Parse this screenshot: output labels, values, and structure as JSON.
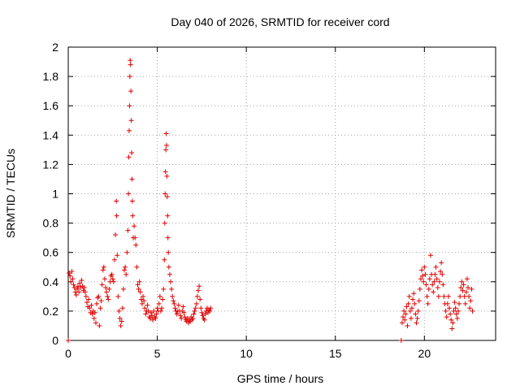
{
  "chart_data": {
    "type": "scatter",
    "title": "Day 040 of 2026, SRMTID for receiver cord",
    "xlabel": "GPS time / hours",
    "ylabel": "SRMTID / TECUs",
    "xlim": [
      0,
      24
    ],
    "ylim": [
      0,
      2
    ],
    "xticks": [
      0,
      5,
      10,
      15,
      20
    ],
    "xtick_labels": [
      "0",
      "5",
      "10",
      "15",
      "20"
    ],
    "yticks": [
      0,
      0.2,
      0.4,
      0.6,
      0.8,
      1,
      1.2,
      1.4,
      1.6,
      1.8,
      2
    ],
    "ytick_labels": [
      "0",
      "0.2",
      "0.4",
      "0.6",
      "0.8",
      "1",
      "1.2",
      "1.4",
      "1.6",
      "1.8",
      "2"
    ],
    "grid": true,
    "marker": "+",
    "marker_color": "#e00000",
    "series": [
      {
        "name": "SRMTID",
        "points": [
          [
            0.0,
            0.0
          ],
          [
            0.05,
            0.46
          ],
          [
            0.1,
            0.44
          ],
          [
            0.15,
            0.4
          ],
          [
            0.2,
            0.47
          ],
          [
            0.25,
            0.42
          ],
          [
            0.3,
            0.38
          ],
          [
            0.35,
            0.36
          ],
          [
            0.4,
            0.33
          ],
          [
            0.45,
            0.31
          ],
          [
            0.5,
            0.35
          ],
          [
            0.55,
            0.37
          ],
          [
            0.6,
            0.33
          ],
          [
            0.65,
            0.39
          ],
          [
            0.7,
            0.36
          ],
          [
            0.75,
            0.41
          ],
          [
            0.8,
            0.37
          ],
          [
            0.85,
            0.34
          ],
          [
            0.9,
            0.36
          ],
          [
            0.95,
            0.33
          ],
          [
            1.0,
            0.3
          ],
          [
            1.05,
            0.26
          ],
          [
            1.1,
            0.23
          ],
          [
            1.15,
            0.28
          ],
          [
            1.2,
            0.22
          ],
          [
            1.25,
            0.19
          ],
          [
            1.3,
            0.24
          ],
          [
            1.35,
            0.18
          ],
          [
            1.4,
            0.2
          ],
          [
            1.45,
            0.15
          ],
          [
            1.5,
            0.19
          ],
          [
            1.55,
            0.12
          ],
          [
            1.6,
            0.25
          ],
          [
            1.65,
            0.29
          ],
          [
            1.7,
            0.3
          ],
          [
            1.75,
            0.1
          ],
          [
            1.8,
            0.22
          ],
          [
            1.85,
            0.27
          ],
          [
            1.9,
            0.38
          ],
          [
            1.95,
            0.48
          ],
          [
            2.0,
            0.5
          ],
          [
            2.05,
            0.42
          ],
          [
            2.1,
            0.36
          ],
          [
            2.15,
            0.33
          ],
          [
            2.2,
            0.3
          ],
          [
            2.25,
            0.28
          ],
          [
            2.3,
            0.35
          ],
          [
            2.35,
            0.4
          ],
          [
            2.4,
            0.44
          ],
          [
            2.45,
            0.45
          ],
          [
            2.5,
            0.42
          ],
          [
            2.55,
            0.4
          ],
          [
            2.6,
            0.55
          ],
          [
            2.65,
            0.72
          ],
          [
            2.7,
            0.95
          ],
          [
            2.72,
            0.85
          ],
          [
            2.75,
            0.58
          ],
          [
            2.8,
            0.3
          ],
          [
            2.85,
            0.2
          ],
          [
            2.9,
            0.15
          ],
          [
            2.95,
            0.1
          ],
          [
            3.0,
            0.13
          ],
          [
            3.05,
            0.22
          ],
          [
            3.1,
            0.35
          ],
          [
            3.15,
            0.48
          ],
          [
            3.2,
            0.5
          ],
          [
            3.25,
            0.45
          ],
          [
            3.3,
            0.6
          ],
          [
            3.35,
            0.75
          ],
          [
            3.38,
            1.0
          ],
          [
            3.4,
            1.25
          ],
          [
            3.42,
            1.43
          ],
          [
            3.44,
            1.6
          ],
          [
            3.46,
            1.8
          ],
          [
            3.48,
            1.91
          ],
          [
            3.5,
            1.88
          ],
          [
            3.52,
            1.7
          ],
          [
            3.54,
            1.5
          ],
          [
            3.56,
            1.28
          ],
          [
            3.58,
            1.1
          ],
          [
            3.6,
            0.95
          ],
          [
            3.62,
            0.85
          ],
          [
            3.65,
            0.7
          ],
          [
            3.7,
            0.78
          ],
          [
            3.75,
            0.7
          ],
          [
            3.8,
            0.65
          ],
          [
            3.85,
            0.5
          ],
          [
            3.9,
            0.38
          ],
          [
            3.95,
            0.35
          ],
          [
            4.0,
            0.4
          ],
          [
            4.05,
            0.33
          ],
          [
            4.1,
            0.28
          ],
          [
            4.15,
            0.25
          ],
          [
            4.2,
            0.3
          ],
          [
            4.25,
            0.27
          ],
          [
            4.3,
            0.22
          ],
          [
            4.35,
            0.18
          ],
          [
            4.4,
            0.2
          ],
          [
            4.45,
            0.24
          ],
          [
            4.5,
            0.2
          ],
          [
            4.55,
            0.16
          ],
          [
            4.6,
            0.15
          ],
          [
            4.65,
            0.19
          ],
          [
            4.7,
            0.17
          ],
          [
            4.75,
            0.14
          ],
          [
            4.8,
            0.2
          ],
          [
            4.85,
            0.16
          ],
          [
            4.9,
            0.15
          ],
          [
            4.95,
            0.18
          ],
          [
            5.0,
            0.22
          ],
          [
            5.05,
            0.2
          ],
          [
            5.1,
            0.25
          ],
          [
            5.15,
            0.3
          ],
          [
            5.2,
            0.2
          ],
          [
            5.25,
            0.22
          ],
          [
            5.3,
            0.28
          ],
          [
            5.35,
            0.35
          ],
          [
            5.4,
            0.55
          ],
          [
            5.42,
            0.8
          ],
          [
            5.44,
            1.0
          ],
          [
            5.46,
            1.15
          ],
          [
            5.48,
            1.3
          ],
          [
            5.5,
            1.41
          ],
          [
            5.52,
            1.33
          ],
          [
            5.54,
            1.12
          ],
          [
            5.56,
            0.98
          ],
          [
            5.58,
            0.85
          ],
          [
            5.6,
            0.7
          ],
          [
            5.62,
            0.6
          ],
          [
            5.65,
            0.5
          ],
          [
            5.7,
            0.45
          ],
          [
            5.75,
            0.4
          ],
          [
            5.8,
            0.35
          ],
          [
            5.85,
            0.3
          ],
          [
            5.9,
            0.27
          ],
          [
            5.95,
            0.25
          ],
          [
            6.0,
            0.22
          ],
          [
            6.05,
            0.2
          ],
          [
            6.1,
            0.18
          ],
          [
            6.15,
            0.2
          ],
          [
            6.2,
            0.24
          ],
          [
            6.25,
            0.2
          ],
          [
            6.3,
            0.17
          ],
          [
            6.35,
            0.15
          ],
          [
            6.4,
            0.2
          ],
          [
            6.45,
            0.23
          ],
          [
            6.5,
            0.19
          ],
          [
            6.55,
            0.16
          ],
          [
            6.6,
            0.14
          ],
          [
            6.65,
            0.13
          ],
          [
            6.7,
            0.15
          ],
          [
            6.75,
            0.12
          ],
          [
            6.8,
            0.14
          ],
          [
            6.85,
            0.13
          ],
          [
            6.9,
            0.16
          ],
          [
            6.95,
            0.14
          ],
          [
            7.0,
            0.15
          ],
          [
            7.05,
            0.18
          ],
          [
            7.1,
            0.2
          ],
          [
            7.15,
            0.22
          ],
          [
            7.2,
            0.25
          ],
          [
            7.25,
            0.3
          ],
          [
            7.3,
            0.34
          ],
          [
            7.35,
            0.37
          ],
          [
            7.4,
            0.28
          ],
          [
            7.45,
            0.22
          ],
          [
            7.5,
            0.19
          ],
          [
            7.55,
            0.17
          ],
          [
            7.6,
            0.15
          ],
          [
            7.65,
            0.14
          ],
          [
            7.7,
            0.18
          ],
          [
            7.75,
            0.2
          ],
          [
            7.8,
            0.22
          ],
          [
            7.85,
            0.19
          ],
          [
            7.9,
            0.21
          ],
          [
            7.95,
            0.2
          ],
          [
            8.0,
            0.22
          ],
          [
            18.7,
            0.0
          ],
          [
            18.75,
            0.12
          ],
          [
            18.8,
            0.16
          ],
          [
            18.85,
            0.2
          ],
          [
            18.9,
            0.14
          ],
          [
            18.95,
            0.18
          ],
          [
            19.0,
            0.23
          ],
          [
            19.05,
            0.1
          ],
          [
            19.1,
            0.25
          ],
          [
            19.15,
            0.3
          ],
          [
            19.2,
            0.2
          ],
          [
            19.25,
            0.15
          ],
          [
            19.3,
            0.22
          ],
          [
            19.35,
            0.28
          ],
          [
            19.4,
            0.32
          ],
          [
            19.45,
            0.25
          ],
          [
            19.5,
            0.18
          ],
          [
            19.55,
            0.12
          ],
          [
            19.6,
            0.15
          ],
          [
            19.65,
            0.2
          ],
          [
            19.7,
            0.27
          ],
          [
            19.75,
            0.35
          ],
          [
            19.8,
            0.42
          ],
          [
            19.85,
            0.48
          ],
          [
            19.9,
            0.44
          ],
          [
            19.95,
            0.4
          ],
          [
            20.0,
            0.5
          ],
          [
            20.05,
            0.45
          ],
          [
            20.1,
            0.38
          ],
          [
            20.15,
            0.3
          ],
          [
            20.2,
            0.25
          ],
          [
            20.25,
            0.35
          ],
          [
            20.3,
            0.42
          ],
          [
            20.35,
            0.58
          ],
          [
            20.4,
            0.45
          ],
          [
            20.45,
            0.38
          ],
          [
            20.5,
            0.33
          ],
          [
            20.55,
            0.4
          ],
          [
            20.6,
            0.45
          ],
          [
            20.65,
            0.5
          ],
          [
            20.7,
            0.42
          ],
          [
            20.75,
            0.36
          ],
          [
            20.8,
            0.3
          ],
          [
            20.85,
            0.4
          ],
          [
            20.9,
            0.47
          ],
          [
            20.95,
            0.53
          ],
          [
            21.0,
            0.45
          ],
          [
            21.05,
            0.38
          ],
          [
            21.1,
            0.3
          ],
          [
            21.15,
            0.25
          ],
          [
            21.2,
            0.2
          ],
          [
            21.25,
            0.16
          ],
          [
            21.3,
            0.25
          ],
          [
            21.35,
            0.3
          ],
          [
            21.4,
            0.22
          ],
          [
            21.45,
            0.18
          ],
          [
            21.5,
            0.14
          ],
          [
            21.55,
            0.08
          ],
          [
            21.6,
            0.12
          ],
          [
            21.65,
            0.2
          ],
          [
            21.7,
            0.26
          ],
          [
            21.75,
            0.22
          ],
          [
            21.8,
            0.18
          ],
          [
            21.85,
            0.15
          ],
          [
            21.9,
            0.2
          ],
          [
            21.95,
            0.25
          ],
          [
            22.0,
            0.3
          ],
          [
            22.05,
            0.36
          ],
          [
            22.1,
            0.4
          ],
          [
            22.15,
            0.34
          ],
          [
            22.2,
            0.38
          ],
          [
            22.25,
            0.3
          ],
          [
            22.3,
            0.25
          ],
          [
            22.35,
            0.33
          ],
          [
            22.4,
            0.42
          ],
          [
            22.45,
            0.36
          ],
          [
            22.5,
            0.3
          ],
          [
            22.55,
            0.22
          ],
          [
            22.6,
            0.27
          ],
          [
            22.65,
            0.35
          ],
          [
            22.7,
            0.2
          ]
        ]
      }
    ]
  }
}
